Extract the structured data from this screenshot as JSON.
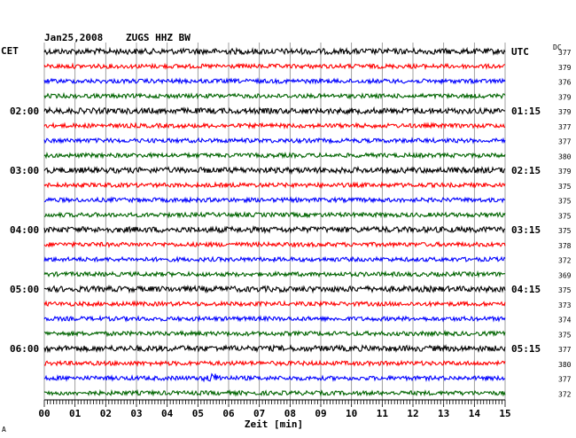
{
  "header": {
    "date": "Jan25,2008",
    "station": "ZUGS HHZ BW"
  },
  "labels": {
    "left_tz": "CET",
    "right_tz": "UTC",
    "dc": "DC"
  },
  "chart_data": {
    "type": "line",
    "title": "Jan25,2008   ZUGS HHZ BW",
    "xlabel": "Zeit [min]",
    "xlim": [
      0,
      15
    ],
    "x_ticks": [
      "00",
      "01",
      "02",
      "03",
      "04",
      "05",
      "06",
      "07",
      "08",
      "09",
      "10",
      "11",
      "12",
      "13",
      "14",
      "15"
    ],
    "grid": true,
    "trace_colors": [
      "#000000",
      "#ff0000",
      "#0000ff",
      "#006400"
    ],
    "left_hour_labels": [
      {
        "trace": 4,
        "text": "02:00"
      },
      {
        "trace": 8,
        "text": "03:00"
      },
      {
        "trace": 12,
        "text": "04:00"
      },
      {
        "trace": 16,
        "text": "05:00"
      },
      {
        "trace": 20,
        "text": "06:00"
      }
    ],
    "right_hour_labels": [
      {
        "trace": 0,
        "text": "UTC"
      },
      {
        "trace": 4,
        "text": "01:15"
      },
      {
        "trace": 8,
        "text": "02:15"
      },
      {
        "trace": 12,
        "text": "03:15"
      },
      {
        "trace": 16,
        "text": "04:15"
      },
      {
        "trace": 20,
        "text": "05:15"
      }
    ],
    "dc_values": [
      377,
      379,
      376,
      379,
      379,
      377,
      377,
      380,
      379,
      375,
      375,
      375,
      375,
      378,
      372,
      369,
      375,
      373,
      374,
      375,
      377,
      380,
      377,
      372
    ],
    "event": {
      "trace": 22,
      "minute": 5.5
    }
  }
}
